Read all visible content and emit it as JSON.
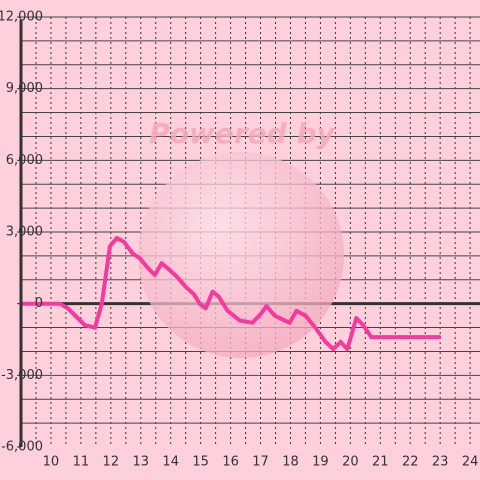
{
  "chart_data": {
    "type": "line",
    "watermark": "Powered by",
    "x": [
      9,
      10.3,
      10.57,
      11.13,
      11.47,
      11.7,
      11.97,
      12.2,
      12.43,
      12.73,
      12.97,
      13.23,
      13.47,
      13.7,
      13.97,
      14.23,
      14.5,
      14.77,
      14.97,
      15.17,
      15.4,
      15.6,
      15.9,
      16.3,
      16.73,
      17.03,
      17.2,
      17.47,
      17.97,
      18.2,
      18.5,
      18.83,
      19.17,
      19.43,
      19.67,
      19.9,
      20.2,
      20.43,
      20.7,
      22.97
    ],
    "values": [
      0,
      0,
      -200,
      -900,
      -1000,
      0,
      2400,
      2750,
      2600,
      2100,
      1900,
      1500,
      1200,
      1700,
      1400,
      1100,
      700,
      400,
      0,
      -200,
      500,
      300,
      -300,
      -700,
      -800,
      -400,
      -100,
      -500,
      -800,
      -300,
      -500,
      -1000,
      -1600,
      -1900,
      -1600,
      -1900,
      -600,
      -900,
      -1400,
      -1400
    ],
    "color": "#f7389e",
    "xlim": [
      9,
      24.33
    ],
    "ylim": [
      -6000,
      12000
    ],
    "xticks": [
      10,
      11,
      12,
      13,
      14,
      15,
      16,
      17,
      18,
      19,
      20,
      21,
      22,
      23,
      24
    ],
    "yticks": [
      {
        "value": 12000,
        "label": "12,000"
      },
      {
        "value": 9000,
        "label": "9,000"
      },
      {
        "value": 6000,
        "label": "6,000"
      },
      {
        "value": 3000,
        "label": "3,000"
      },
      0,
      {
        "value": -3000,
        "label": "-3,000"
      },
      {
        "value": -6000,
        "label": "-6,000"
      }
    ],
    "minor_yticks": [
      -5000,
      -4000,
      -3000,
      -2000,
      -1000,
      1000,
      2000,
      3000,
      4000,
      5000,
      6000,
      7000,
      8000,
      9000,
      10000,
      11000,
      12000
    ],
    "minor_xticks": [
      9.5,
      10,
      10.5,
      11,
      11.5,
      12,
      12.5,
      13,
      13.5,
      14,
      14.5,
      15,
      15.5,
      16,
      16.5,
      17,
      17.5,
      18,
      18.5,
      19,
      19.5,
      20,
      20.5,
      21,
      21.5,
      22,
      22.5,
      23,
      23.5,
      24
    ],
    "grid": true
  }
}
